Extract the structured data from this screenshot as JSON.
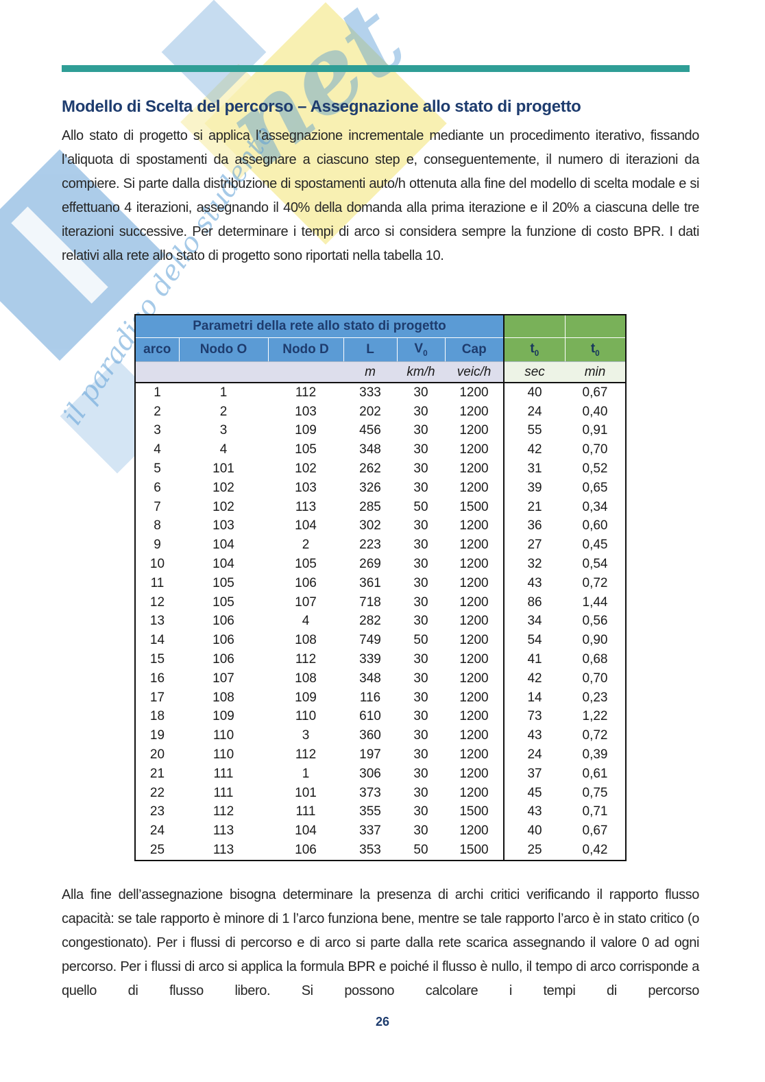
{
  "title": "Modello di Scelta del percorso – Assegnazione allo stato di progetto",
  "paragraphs": {
    "intro": "Allo stato di progetto si applica l’assegnazione incrementale mediante un procedimento iterativo, fissando l’aliquota di spostamenti da assegnare a ciascuno step e, conseguentemente, il numero di iterazioni da compiere. Si parte dalla distribuzione di spostamenti auto/h ottenuta alla fine del modello di scelta modale e si effettuano 4 iterazioni, assegnando il 40% della domanda alla prima iterazione e il 20% a ciascuna delle tre iterazioni successive. Per determinare i tempi di arco si considera sempre la funzione di costo BPR. I dati relativi alla rete allo stato di progetto sono riportati nella tabella 10.",
    "conclusion": "Alla fine dell’assegnazione bisogna determinare la presenza di archi critici verificando il rapporto flusso capacità: se tale rapporto è minore di 1 l’arco funziona bene, mentre se tale rapporto l’arco è in stato critico (o congestionato). Per i flussi di percorso e di arco si parte dalla rete scarica assegnando il valore 0 ad ogni percorso. Per i flussi di arco si applica la formula BPR e poiché il flusso è nullo, il tempo di arco corrisponde a quello di flusso libero. Si possono calcolare i tempi di percorso"
  },
  "table": {
    "group_header": "Parametri della rete allo stato di progetto",
    "columns": [
      {
        "label": "arco",
        "sub": ""
      },
      {
        "label": "Nodo O",
        "sub": ""
      },
      {
        "label": "Nodo D",
        "sub": ""
      },
      {
        "label": "L",
        "sub": ""
      },
      {
        "label": "V",
        "sub": "0"
      },
      {
        "label": "Cap",
        "sub": ""
      },
      {
        "label": "t",
        "sub": "0"
      },
      {
        "label": "t",
        "sub": "0"
      }
    ],
    "units": [
      "",
      "",
      "",
      "m",
      "km/h",
      "veic/h",
      "sec",
      "min"
    ],
    "rows": [
      [
        "1",
        "1",
        "112",
        "333",
        "30",
        "1200",
        "40",
        "0,67"
      ],
      [
        "2",
        "2",
        "103",
        "202",
        "30",
        "1200",
        "24",
        "0,40"
      ],
      [
        "3",
        "3",
        "109",
        "456",
        "30",
        "1200",
        "55",
        "0,91"
      ],
      [
        "4",
        "4",
        "105",
        "348",
        "30",
        "1200",
        "42",
        "0,70"
      ],
      [
        "5",
        "101",
        "102",
        "262",
        "30",
        "1200",
        "31",
        "0,52"
      ],
      [
        "6",
        "102",
        "103",
        "326",
        "30",
        "1200",
        "39",
        "0,65"
      ],
      [
        "7",
        "102",
        "113",
        "285",
        "50",
        "1500",
        "21",
        "0,34"
      ],
      [
        "8",
        "103",
        "104",
        "302",
        "30",
        "1200",
        "36",
        "0,60"
      ],
      [
        "9",
        "104",
        "2",
        "223",
        "30",
        "1200",
        "27",
        "0,45"
      ],
      [
        "10",
        "104",
        "105",
        "269",
        "30",
        "1200",
        "32",
        "0,54"
      ],
      [
        "11",
        "105",
        "106",
        "361",
        "30",
        "1200",
        "43",
        "0,72"
      ],
      [
        "12",
        "105",
        "107",
        "718",
        "30",
        "1200",
        "86",
        "1,44"
      ],
      [
        "13",
        "106",
        "4",
        "282",
        "30",
        "1200",
        "34",
        "0,56"
      ],
      [
        "14",
        "106",
        "108",
        "749",
        "50",
        "1200",
        "54",
        "0,90"
      ],
      [
        "15",
        "106",
        "112",
        "339",
        "30",
        "1200",
        "41",
        "0,68"
      ],
      [
        "16",
        "107",
        "108",
        "348",
        "30",
        "1200",
        "42",
        "0,70"
      ],
      [
        "17",
        "108",
        "109",
        "116",
        "30",
        "1200",
        "14",
        "0,23"
      ],
      [
        "18",
        "109",
        "110",
        "610",
        "30",
        "1200",
        "73",
        "1,22"
      ],
      [
        "19",
        "110",
        "3",
        "360",
        "30",
        "1200",
        "43",
        "0,72"
      ],
      [
        "20",
        "110",
        "112",
        "197",
        "30",
        "1200",
        "24",
        "0,39"
      ],
      [
        "21",
        "111",
        "1",
        "306",
        "30",
        "1200",
        "37",
        "0,61"
      ],
      [
        "22",
        "111",
        "101",
        "373",
        "30",
        "1200",
        "45",
        "0,75"
      ],
      [
        "23",
        "112",
        "111",
        "355",
        "30",
        "1500",
        "43",
        "0,71"
      ],
      [
        "24",
        "113",
        "104",
        "337",
        "30",
        "1200",
        "40",
        "0,67"
      ],
      [
        "25",
        "113",
        "106",
        "353",
        "50",
        "1500",
        "25",
        "0,42"
      ]
    ]
  },
  "footer": {
    "page_number": "26"
  },
  "watermark": {
    "logo_text": "net",
    "tagline": "il paradiso dello studente"
  },
  "colors": {
    "accent_teal": "#2f9e96",
    "header_blue": "#5b9bd5",
    "header_green": "#79b159",
    "units_lavender": "#dddeec",
    "units_light_green": "#edf3e6",
    "title_navy": "#1e3c6e"
  }
}
